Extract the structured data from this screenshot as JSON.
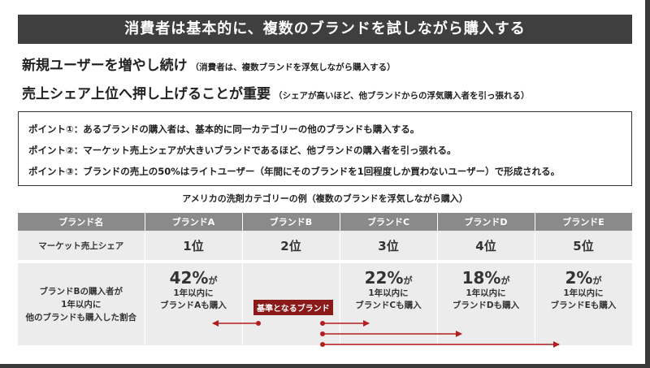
{
  "title": "消費者は基本的に、複数のブランドを試しながら購入する",
  "headlines": [
    {
      "main": "新規ユーザーを増やし続け",
      "note": "（消費者は、複数ブランドを浮気しながら購入する）"
    },
    {
      "main": "売上シェア上位へ押し上げることが重要",
      "note": "（シェアが高いほど、他ブランドからの浮気購入者を引っ張れる）"
    }
  ],
  "points": [
    "ポイント①：あるブランドの購入者は、基本的に同一カテゴリーの他のブランドも購入する。",
    "ポイント②：マーケット売上シェアが大きいブランドであるほど、他ブランドの購入者を引っ張れる。",
    "ポイント③：ブランドの売上の50%はライトユーザー（年間にそのブランドを1回程度しか買わないユーザー）で形成される。"
  ],
  "table": {
    "caption": "アメリカの洗剤カテゴリーの例（複数のブランドを浮気しながら購入）",
    "header": [
      "ブランド名",
      "ブランドA",
      "ブランドB",
      "ブランドC",
      "ブランドD",
      "ブランドE"
    ],
    "rank_label": "マーケット売上シェア",
    "ranks": [
      "1位",
      "2位",
      "3位",
      "4位",
      "5位"
    ],
    "pct_label_lines": [
      "ブランドBの購入者が",
      "1年以内に",
      "他のブランドも購入した割合"
    ],
    "pct": [
      {
        "value": "42%",
        "ga": "が",
        "line1": "1年以内に",
        "line2": "ブランドAも購入"
      },
      null,
      {
        "value": "22%",
        "ga": "が",
        "line1": "1年以内に",
        "line2": "ブランドCも購入"
      },
      {
        "value": "18%",
        "ga": "が",
        "line1": "1年以内に",
        "line2": "ブランドDも購入"
      },
      {
        "value": "2%",
        "ga": "が",
        "line1": "1年以内に",
        "line2": "ブランドEも購入"
      }
    ],
    "base_label": "基準となるブランド"
  },
  "colors": {
    "title_bg": "#3f3f3f",
    "header_bg": "#8a8a8a",
    "cell_bg": "#ececec",
    "accent_red": "#b41e1e",
    "base_label_bg": "#8b1a1a"
  }
}
